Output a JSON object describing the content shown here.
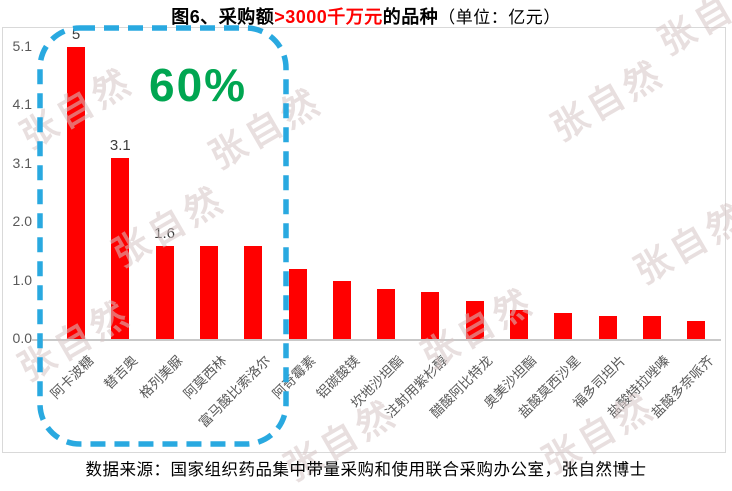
{
  "title": {
    "part1": "图6、采购额",
    "highlight": ">3000千万元",
    "part2": "的品种",
    "unit": "（单位：亿元）"
  },
  "chart_data": {
    "type": "bar",
    "title": "图6、采购额>3000千万元的品种",
    "unit_note": "（单位：亿元）",
    "categories": [
      "阿卡波糖",
      "替吉奥",
      "格列美脲",
      "阿莫西林",
      "富马酸比索洛尔",
      "阿奇霉素",
      "铝碳酸镁",
      "坎地沙坦酯",
      "注射用紫杉醇",
      "醋酸阿比特龙",
      "奥美沙坦酯",
      "盐酸莫西沙星",
      "福多司坦片",
      "盐酸特拉唑嗪",
      "盐酸多奈哌齐"
    ],
    "values": [
      5,
      3.1,
      1.6,
      1.6,
      1.6,
      1.2,
      1.0,
      0.85,
      0.8,
      0.65,
      0.5,
      0.45,
      0.4,
      0.4,
      0.3
    ],
    "data_labels": {
      "0": "5",
      "1": "3.1",
      "2": "1.6"
    },
    "y_ticks": [
      "5.1",
      "4.1",
      "3.1",
      "2.0",
      "1.0",
      "0.0"
    ],
    "ylim": [
      0,
      5.1
    ],
    "grid": false,
    "legend": false,
    "bar_color": "#ff0000",
    "axis_text_color": "#595959",
    "annotation": {
      "text": "60%",
      "color": "#00a651",
      "covers_first_n_categories": 6,
      "highlight_box_color": "#29a9e0"
    }
  },
  "watermark_text": "张自然",
  "source_note": "数据来源：国家组织药品集中带量采购和使用联合采购办公室，张自然博士"
}
